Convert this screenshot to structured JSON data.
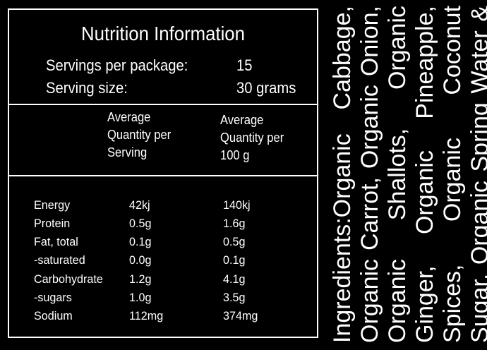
{
  "nutrition": {
    "title": "Nutrition Information",
    "servings_label": "Servings per package:",
    "servings_value": "15",
    "serving_size_label": "Serving size:",
    "serving_size_value": "30 grams",
    "col_per_serving": [
      "Average",
      "Quantity per",
      "Serving"
    ],
    "col_per_100g": [
      "Average",
      "Quantity per",
      "100 g"
    ],
    "rows": [
      {
        "name": "Energy",
        "per_serving": "42kj",
        "per_100g": "140kj"
      },
      {
        "name": "Protein",
        "per_serving": "0.5g",
        "per_100g": "1.6g"
      },
      {
        "name": "Fat, total",
        "per_serving": "0.1g",
        "per_100g": "0.5g"
      },
      {
        "name": "-saturated",
        "per_serving": "0.0g",
        "per_100g": "0.1g"
      },
      {
        "name": "Carbohydrate",
        "per_serving": "1.2g",
        "per_100g": "4.1g"
      },
      {
        "name": "-sugars",
        "per_serving": "1.0g",
        "per_100g": "3.5g"
      },
      {
        "name": "Sodium",
        "per_serving": "112mg",
        "per_100g": "374mg"
      }
    ]
  },
  "ingredients": {
    "text": "Ingredients:Organic Cabbage, Organic Carrot, Organic Onion, Organic Shallots, Organic Ginger, Organic Pineapple, Spices, Organic Coconut Sugar, Organic Spring Water & Himalayan Salt."
  }
}
